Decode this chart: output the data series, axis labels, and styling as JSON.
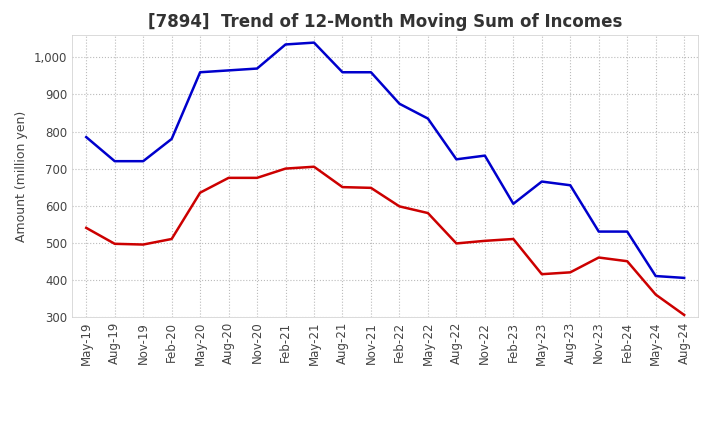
{
  "title": "[7894]  Trend of 12-Month Moving Sum of Incomes",
  "ylabel": "Amount (million yen)",
  "x_labels": [
    "May-19",
    "Aug-19",
    "Nov-19",
    "Feb-20",
    "May-20",
    "Aug-20",
    "Nov-20",
    "Feb-21",
    "May-21",
    "Aug-21",
    "Nov-21",
    "Feb-22",
    "May-22",
    "Aug-22",
    "Nov-22",
    "Feb-23",
    "May-23",
    "Aug-23",
    "Nov-23",
    "Feb-24",
    "May-24",
    "Aug-24"
  ],
  "ordinary_income": [
    785,
    720,
    720,
    780,
    960,
    965,
    970,
    1035,
    1040,
    960,
    960,
    875,
    835,
    725,
    735,
    605,
    665,
    655,
    530,
    530,
    410,
    405
  ],
  "net_income": [
    540,
    497,
    495,
    510,
    635,
    675,
    675,
    700,
    705,
    650,
    648,
    598,
    580,
    498,
    505,
    510,
    415,
    420,
    460,
    450,
    360,
    305
  ],
  "ordinary_color": "#0000cc",
  "net_color": "#cc0000",
  "ylim": [
    300,
    1060
  ],
  "yticks": [
    300,
    400,
    500,
    600,
    700,
    800,
    900,
    1000
  ],
  "grid_color": "#bbbbbb",
  "bg_color": "#ffffff",
  "title_fontsize": 12,
  "label_fontsize": 9,
  "tick_fontsize": 8.5
}
